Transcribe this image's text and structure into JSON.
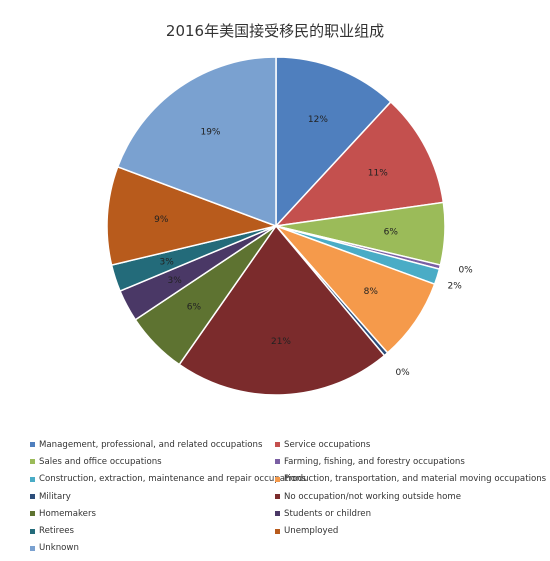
{
  "chart_data": {
    "type": "pie",
    "title": "2016年美国接受移民的职业组成",
    "legend_position": "bottom",
    "slices": [
      {
        "name": "Management, professional, and related occupations",
        "value": 12,
        "label": "12%",
        "color": "#4f7fbe"
      },
      {
        "name": "Service occupations",
        "value": 11,
        "label": "11%",
        "color": "#c4504e"
      },
      {
        "name": "Sales and office occupations",
        "value": 6,
        "label": "6%",
        "color": "#9bbb59"
      },
      {
        "name": "Farming, fishing, and forestry occupations",
        "value": 0.4,
        "label": "0%",
        "color": "#7a5fa3"
      },
      {
        "name": "Construction, extraction, maintenance and repair occupations",
        "value": 1.5,
        "label": "2%",
        "color": "#4aacc6"
      },
      {
        "name": "Production, transportation, and material moving occupations",
        "value": 8,
        "label": "8%",
        "color": "#f59a4b"
      },
      {
        "name": "Military",
        "value": 0.4,
        "label": "0%",
        "color": "#2c4d7a"
      },
      {
        "name": "No occupation/not working outside home",
        "value": 21,
        "label": "21%",
        "color": "#7b2b2c"
      },
      {
        "name": "Homemakers",
        "value": 6,
        "label": "6%",
        "color": "#5e7331"
      },
      {
        "name": "Students or children",
        "value": 3.1,
        "label": "3%",
        "color": "#4a3866"
      },
      {
        "name": "Retirees",
        "value": 2.6,
        "label": "3%",
        "color": "#236b7a"
      },
      {
        "name": "Unemployed",
        "value": 9.5,
        "label": "9%",
        "color": "#b85b1c"
      },
      {
        "name": "Unknown",
        "value": 19.5,
        "label": "19%",
        "color": "#7aa1d0"
      }
    ]
  }
}
